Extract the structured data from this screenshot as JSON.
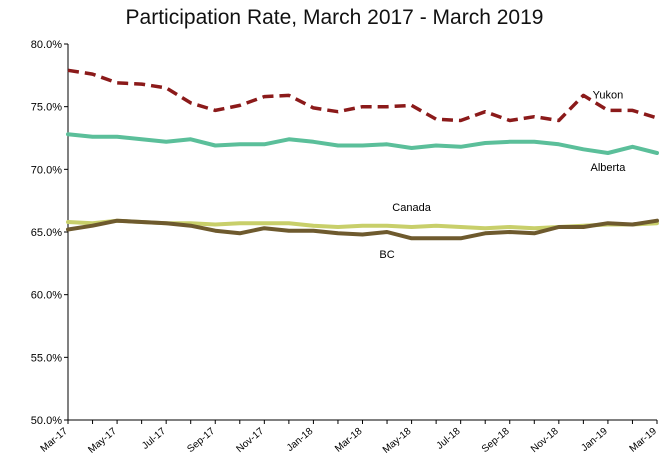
{
  "chart_data": {
    "type": "line",
    "title": "Participation Rate, March 2017 - March 2019",
    "x": [
      "Mar-17",
      "Apr-17",
      "May-17",
      "Jun-17",
      "Jul-17",
      "Aug-17",
      "Sep-17",
      "Oct-17",
      "Nov-17",
      "Dec-17",
      "Jan-18",
      "Feb-18",
      "Mar-18",
      "Apr-18",
      "May-18",
      "Jun-18",
      "Jul-18",
      "Aug-18",
      "Sep-18",
      "Oct-18",
      "Nov-18",
      "Dec-18",
      "Jan-19",
      "Feb-19",
      "Mar-19"
    ],
    "x_tick_labels": [
      "Mar-17",
      "May-17",
      "Jul-17",
      "Sep-17",
      "Nov-17",
      "Jan-18",
      "Mar-18",
      "May-18",
      "Jul-18",
      "Sep-18",
      "Nov-18",
      "Jan-19",
      "Mar-19"
    ],
    "ylim": [
      50,
      80
    ],
    "y_ticks": [
      50,
      55,
      60,
      65,
      70,
      75,
      80
    ],
    "y_tick_labels": [
      "50.0%",
      "55.0%",
      "60.0%",
      "65.0%",
      "70.0%",
      "75.0%",
      "80.0%"
    ],
    "grid": false,
    "legend": "none",
    "series": [
      {
        "name": "Yukon",
        "color": "#8b1a1a",
        "style": "dashed",
        "values": [
          77.9,
          77.6,
          76.9,
          76.8,
          76.5,
          75.3,
          74.7,
          75.1,
          75.8,
          75.9,
          74.9,
          74.6,
          75.0,
          75.0,
          75.1,
          74.0,
          73.9,
          74.6,
          73.9,
          74.2,
          73.9,
          75.9,
          74.7,
          74.7,
          74.1
        ]
      },
      {
        "name": "Alberta",
        "color": "#5bbf9a",
        "style": "solid",
        "values": [
          72.8,
          72.6,
          72.6,
          72.4,
          72.2,
          72.4,
          71.9,
          72.0,
          72.0,
          72.4,
          72.2,
          71.9,
          71.9,
          72.0,
          71.7,
          71.9,
          71.8,
          72.1,
          72.2,
          72.2,
          72.0,
          71.6,
          71.3,
          71.8,
          71.3
        ]
      },
      {
        "name": "Canada",
        "color": "#c8cf6a",
        "style": "solid",
        "values": [
          65.8,
          65.7,
          65.9,
          65.8,
          65.7,
          65.7,
          65.6,
          65.7,
          65.7,
          65.7,
          65.5,
          65.4,
          65.5,
          65.5,
          65.4,
          65.5,
          65.4,
          65.3,
          65.4,
          65.3,
          65.4,
          65.5,
          65.6,
          65.6,
          65.7
        ]
      },
      {
        "name": "BC",
        "color": "#6e5a2e",
        "style": "solid",
        "values": [
          65.2,
          65.5,
          65.9,
          65.8,
          65.7,
          65.5,
          65.1,
          64.9,
          65.3,
          65.1,
          65.1,
          64.9,
          64.8,
          65.0,
          64.5,
          64.5,
          64.5,
          64.9,
          65.0,
          64.9,
          65.4,
          65.4,
          65.7,
          65.6,
          65.9
        ]
      }
    ]
  }
}
